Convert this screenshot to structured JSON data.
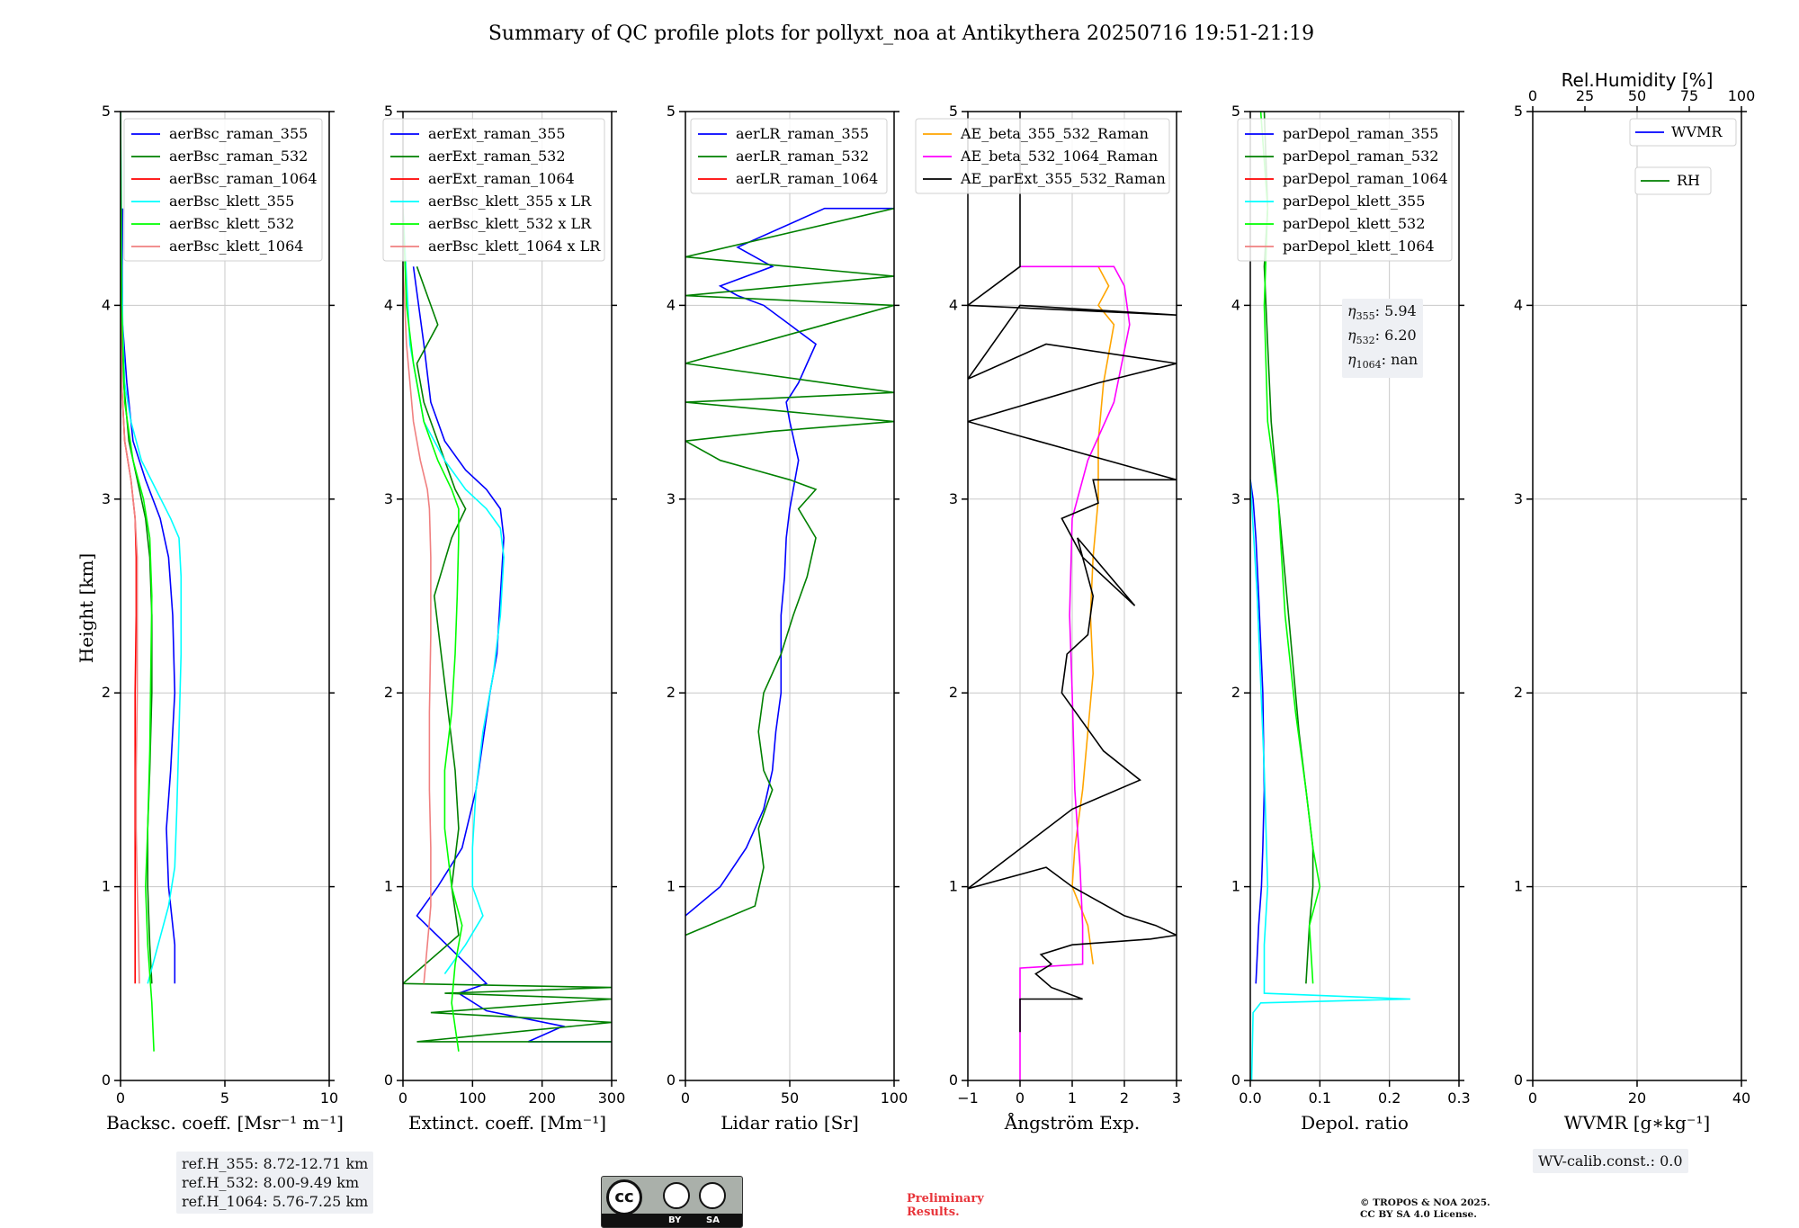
{
  "title": "Summary of QC profile plots for pollyxt_noa at Antikythera 20250716 19:51-21:19",
  "ylabel": "Height [km]",
  "ref_box": [
    "ref.H_355: 8.72-12.71 km",
    "ref.H_532: 8.00-9.49 km",
    "ref.H_1064: 5.76-7.25 km"
  ],
  "eta_box": [
    {
      "sub": "355",
      "value": "5.94"
    },
    {
      "sub": "532",
      "value": "6.20"
    },
    {
      "sub": "1064",
      "value": "nan"
    }
  ],
  "wv_calib": "WV-calib.const.: 0.0",
  "preliminary": "Preliminary\nResults.",
  "copyright": "© TROPOS & NOA 2025.\nCC BY SA 4.0 License.",
  "license_badge": {
    "by": "BY",
    "sa": "SA",
    "cc": "cc"
  },
  "chart_data": [
    {
      "type": "line",
      "xlabel": "Backsc. coeff. [Msr⁻¹ m⁻¹]",
      "xlim": [
        0,
        10
      ],
      "ylim": [
        0,
        5
      ],
      "xticks": [
        "0",
        "5",
        "10"
      ],
      "yticks": [
        "0",
        "1",
        "2",
        "3",
        "4",
        "5"
      ],
      "legend": "top-right",
      "grid": true,
      "series": [
        {
          "name": "aerBsc_raman_355",
          "color": "#0000ff",
          "x": [
            2.6,
            2.6,
            2.3,
            2.2,
            2.4,
            2.6,
            2.5,
            2.3,
            1.9,
            1.2,
            0.6,
            0.3,
            0.1,
            0.08,
            0.1
          ],
          "y": [
            0.5,
            0.7,
            1.0,
            1.3,
            1.6,
            2.0,
            2.4,
            2.7,
            2.9,
            3.1,
            3.3,
            3.6,
            3.9,
            4.2,
            4.5
          ]
        },
        {
          "name": "aerBsc_raman_532",
          "color": "#008000",
          "x": [
            1.5,
            1.4,
            1.3,
            1.3,
            1.4,
            1.5,
            1.5,
            1.4,
            1.2,
            0.8,
            0.4,
            0.15,
            0.05,
            0.05
          ],
          "y": [
            0.5,
            0.7,
            1.0,
            1.3,
            1.6,
            2.0,
            2.4,
            2.7,
            2.9,
            3.1,
            3.3,
            3.6,
            4.0,
            4.5
          ]
        },
        {
          "name": "aerBsc_raman_1064",
          "color": "#ff0000",
          "x": [
            0.7,
            0.7,
            0.7,
            0.7,
            0.7,
            0.7,
            0.75,
            0.75,
            0.7,
            0.5,
            0.2,
            0.05,
            0.02
          ],
          "y": [
            0.5,
            0.7,
            1.0,
            1.3,
            1.6,
            2.0,
            2.4,
            2.7,
            2.9,
            3.1,
            3.3,
            3.6,
            4.0
          ]
        },
        {
          "name": "aerBsc_klett_355",
          "color": "#00ffff",
          "x": [
            1.3,
            1.8,
            2.3,
            2.6,
            2.7,
            2.8,
            2.9,
            2.9,
            2.8,
            2.4,
            1.7,
            1.0,
            0.5,
            0.2,
            0.1,
            0.05,
            0.0
          ],
          "y": [
            0.5,
            0.7,
            0.9,
            1.1,
            1.4,
            1.8,
            2.2,
            2.6,
            2.8,
            2.9,
            3.05,
            3.2,
            3.4,
            3.6,
            3.9,
            4.3,
            5.0
          ]
        },
        {
          "name": "aerBsc_klett_532",
          "color": "#00ff00",
          "x": [
            1.6,
            1.5,
            1.3,
            1.2,
            1.3,
            1.4,
            1.45,
            1.5,
            1.4,
            1.1,
            0.6,
            0.2,
            0.05,
            0.0
          ],
          "y": [
            0.15,
            0.4,
            0.7,
            1.0,
            1.3,
            1.7,
            2.1,
            2.5,
            2.8,
            3.0,
            3.2,
            3.5,
            4.0,
            5.0
          ]
        },
        {
          "name": "aerBsc_klett_1064",
          "color": "#f08080",
          "x": [
            0.9,
            0.85,
            0.8,
            0.75,
            0.75,
            0.8,
            0.8,
            0.8,
            0.7,
            0.5,
            0.2,
            0.05,
            0.0
          ],
          "y": [
            0.5,
            0.8,
            1.0,
            1.3,
            1.6,
            2.0,
            2.4,
            2.7,
            2.9,
            3.1,
            3.3,
            3.6,
            4.0
          ]
        }
      ]
    },
    {
      "type": "line",
      "xlabel": "Extinct. coeff. [Mm⁻¹]",
      "xlim": [
        0,
        300
      ],
      "ylim": [
        0,
        5
      ],
      "xticks": [
        "0",
        "100",
        "200",
        "300"
      ],
      "yticks": [
        "0",
        "1",
        "2",
        "3",
        "4",
        "5"
      ],
      "legend": "top-right",
      "grid": true,
      "series": [
        {
          "name": "aerExt_raman_355",
          "color": "#0000ff",
          "x": [
            300,
            180,
            230,
            120,
            80,
            120,
            20,
            50,
            85,
            105,
            115,
            125,
            135,
            140,
            145,
            140,
            120,
            90,
            60,
            40,
            30,
            15
          ],
          "y": [
            0.2,
            0.2,
            0.28,
            0.36,
            0.45,
            0.5,
            0.85,
            1.0,
            1.2,
            1.5,
            1.75,
            2.0,
            2.2,
            2.5,
            2.8,
            2.95,
            3.05,
            3.15,
            3.3,
            3.5,
            3.8,
            4.2
          ]
        },
        {
          "name": "aerExt_raman_532",
          "color": "#008000",
          "x": [
            300,
            20,
            300,
            40,
            300,
            60,
            300,
            0,
            80,
            70,
            80,
            75,
            65,
            55,
            45,
            70,
            90,
            75,
            60,
            40,
            30,
            20,
            50,
            20
          ],
          "y": [
            0.2,
            0.2,
            0.3,
            0.35,
            0.42,
            0.45,
            0.48,
            0.5,
            0.75,
            1.0,
            1.3,
            1.6,
            1.9,
            2.2,
            2.5,
            2.8,
            2.95,
            3.05,
            3.2,
            3.4,
            3.5,
            3.7,
            3.9,
            4.2
          ]
        },
        {
          "name": "aerExt_raman_1064",
          "color": "#ff0000",
          "x": [],
          "y": []
        },
        {
          "name": "aerBsc_klett_355 x LR",
          "color": "#00ffff",
          "x": [
            60,
            90,
            115,
            100,
            100,
            105,
            115,
            130,
            140,
            145,
            140,
            120,
            90,
            60,
            30,
            10,
            0
          ],
          "y": [
            0.55,
            0.7,
            0.85,
            1.0,
            1.2,
            1.5,
            1.8,
            2.1,
            2.4,
            2.7,
            2.85,
            2.95,
            3.05,
            3.2,
            3.4,
            3.8,
            4.5
          ]
        },
        {
          "name": "aerBsc_klett_532 x LR",
          "color": "#00ff00",
          "x": [
            80,
            70,
            75,
            85,
            70,
            60,
            60,
            70,
            75,
            78,
            80,
            80,
            70,
            50,
            30,
            15,
            5,
            0
          ],
          "y": [
            0.15,
            0.4,
            0.6,
            0.8,
            1.0,
            1.3,
            1.6,
            1.9,
            2.2,
            2.5,
            2.8,
            2.95,
            3.05,
            3.2,
            3.4,
            3.7,
            4.0,
            4.5
          ]
        },
        {
          "name": "aerBsc_klett_1064 x LR",
          "color": "#f08080",
          "x": [
            30,
            35,
            40,
            40,
            38,
            38,
            40,
            40,
            38,
            35,
            25,
            15,
            5,
            0
          ],
          "y": [
            0.5,
            0.7,
            0.9,
            1.2,
            1.5,
            1.9,
            2.3,
            2.7,
            2.95,
            3.05,
            3.2,
            3.4,
            3.8,
            4.2
          ]
        }
      ]
    },
    {
      "type": "line",
      "xlabel": "Lidar ratio [Sr]",
      "xlim": [
        0,
        120
      ],
      "ylim": [
        0,
        5
      ],
      "xticks": [
        "0",
        "50",
        "100"
      ],
      "yticks": [
        "0",
        "1",
        "2",
        "3",
        "4",
        "5"
      ],
      "legend": "top-right",
      "grid": true,
      "series": [
        {
          "name": "aerLR_raman_355",
          "color": "#0000ff",
          "x": [
            0,
            20,
            35,
            45,
            50,
            52,
            55,
            55,
            55,
            57,
            58,
            60,
            62,
            65,
            60,
            58,
            65,
            70,
            75,
            60,
            45,
            30,
            20,
            50,
            30,
            80,
            120
          ],
          "y": [
            0.85,
            1.0,
            1.2,
            1.4,
            1.6,
            1.8,
            2.0,
            2.2,
            2.4,
            2.6,
            2.8,
            2.95,
            3.05,
            3.2,
            3.4,
            3.5,
            3.6,
            3.7,
            3.8,
            3.9,
            4.0,
            4.05,
            4.1,
            4.2,
            4.3,
            4.5,
            4.5
          ]
        },
        {
          "name": "aerLR_raman_532",
          "color": "#008000",
          "x": [
            0,
            40,
            45,
            42,
            50,
            45,
            42,
            45,
            55,
            62,
            70,
            75,
            65,
            75,
            60,
            40,
            20,
            0,
            50,
            120,
            0,
            120,
            0,
            120,
            0,
            120,
            0,
            120
          ],
          "y": [
            0.75,
            0.9,
            1.1,
            1.3,
            1.5,
            1.6,
            1.8,
            2.0,
            2.2,
            2.4,
            2.6,
            2.8,
            2.95,
            3.05,
            3.1,
            3.15,
            3.2,
            3.3,
            3.35,
            3.4,
            3.5,
            3.55,
            3.7,
            4.0,
            4.05,
            4.15,
            4.25,
            4.5
          ]
        },
        {
          "name": "aerLR_raman_1064",
          "color": "#ff0000",
          "x": [],
          "y": []
        }
      ]
    },
    {
      "type": "line",
      "xlabel": "Ångström Exp.",
      "xlim": [
        -1,
        3
      ],
      "ylim": [
        0,
        5
      ],
      "xticks": [
        "−1",
        "0",
        "1",
        "2",
        "3"
      ],
      "yticks": [
        "0",
        "1",
        "2",
        "3",
        "4",
        "5"
      ],
      "legend": "top-right",
      "grid": true,
      "series": [
        {
          "name": "AE_beta_355_532_Raman",
          "color": "#ffa500",
          "x": [
            1.4,
            1.3,
            1.0,
            1.05,
            1.2,
            1.3,
            1.4,
            1.35,
            1.4,
            1.5,
            1.5,
            1.6,
            1.8,
            1.5,
            1.7,
            1.5
          ],
          "y": [
            0.6,
            0.8,
            1.0,
            1.2,
            1.5,
            1.8,
            2.1,
            2.4,
            2.7,
            3.0,
            3.3,
            3.6,
            3.9,
            4.0,
            4.1,
            4.2
          ]
        },
        {
          "name": "AE_beta_532_1064_Raman",
          "color": "#ff00ff",
          "x": [
            0,
            0,
            1.2,
            1.2,
            1.15,
            1.05,
            1.0,
            0.95,
            1.0,
            1.3,
            1.8,
            2.1,
            2.0,
            1.8,
            0
          ],
          "y": [
            0,
            0.58,
            0.6,
            0.8,
            1.1,
            1.5,
            2.0,
            2.4,
            2.9,
            3.2,
            3.5,
            3.9,
            4.1,
            4.2,
            4.2
          ]
        },
        {
          "name": "AE_parExt_355_532_Raman",
          "color": "#000000",
          "x": [
            0,
            0,
            1.2,
            0.6,
            0.3,
            0.6,
            0.4,
            1.0,
            2.5,
            3.0,
            2.6,
            2.0,
            1.0,
            0.5,
            -1,
            1.0,
            2.3,
            1.6,
            0.8,
            0.9,
            1.3,
            1.4,
            1.1,
            2.2,
            1.2,
            0.8,
            1.5,
            1.4,
            1.5,
            3.0,
            1.0,
            -1,
            1.5,
            3.0,
            0.5,
            -1,
            0,
            3.0,
            -1,
            0,
            0
          ],
          "y": [
            0.25,
            0.42,
            0.42,
            0.48,
            0.55,
            0.6,
            0.65,
            0.7,
            0.73,
            0.75,
            0.8,
            0.85,
            1.0,
            1.1,
            0.99,
            1.4,
            1.55,
            1.7,
            2.0,
            2.2,
            2.3,
            2.5,
            2.8,
            2.45,
            2.7,
            2.9,
            2.98,
            3.1,
            3.1,
            3.1,
            3.25,
            3.4,
            3.6,
            3.7,
            3.8,
            3.62,
            4.0,
            3.95,
            4.0,
            4.2,
            5.0
          ]
        }
      ]
    },
    {
      "type": "line",
      "xlabel": "Depol. ratio",
      "xlim": [
        0,
        0.3
      ],
      "ylim": [
        0,
        5
      ],
      "xticks": [
        "0.0",
        "0.1",
        "0.2",
        "0.3"
      ],
      "yticks": [
        "0",
        "1",
        "2",
        "3",
        "4",
        "5"
      ],
      "legend": "top-right",
      "grid": true,
      "series": [
        {
          "name": "parDepol_raman_355",
          "color": "#0000ff",
          "x": [
            0.008,
            0.012,
            0.016,
            0.018,
            0.02,
            0.018,
            0.012,
            0.008,
            0.004,
            0.0
          ],
          "y": [
            0.5,
            0.8,
            1.0,
            1.2,
            1.5,
            2.0,
            2.5,
            2.8,
            3.0,
            3.1
          ]
        },
        {
          "name": "parDepol_raman_532",
          "color": "#008000",
          "x": [
            0.08,
            0.085,
            0.09,
            0.09,
            0.08,
            0.07,
            0.06,
            0.05,
            0.04,
            0.03,
            0.025,
            0.02,
            0.025,
            0.02
          ],
          "y": [
            0.5,
            0.8,
            1.0,
            1.2,
            1.5,
            1.8,
            2.2,
            2.6,
            3.0,
            3.4,
            3.8,
            4.2,
            4.5,
            5.0
          ]
        },
        {
          "name": "parDepol_raman_1064",
          "color": "#ff0000",
          "x": [],
          "y": []
        },
        {
          "name": "parDepol_klett_355",
          "color": "#00ffff",
          "x": [
            0.002,
            0.004,
            0.015,
            0.23,
            0.02,
            0.02,
            0.025,
            0.02,
            0.01,
            0.0
          ],
          "y": [
            0,
            0.35,
            0.4,
            0.42,
            0.45,
            0.7,
            1.0,
            1.6,
            2.5,
            3.1
          ]
        },
        {
          "name": "parDepol_klett_532",
          "color": "#00ff00",
          "x": [
            0.09,
            0.085,
            0.1,
            0.09,
            0.08,
            0.065,
            0.05,
            0.04,
            0.025,
            0.02,
            0.025,
            0.015
          ],
          "y": [
            0.5,
            0.8,
            1.0,
            1.2,
            1.5,
            1.9,
            2.4,
            3.0,
            3.4,
            4.0,
            4.5,
            5.0
          ]
        },
        {
          "name": "parDepol_klett_1064",
          "color": "#f08080",
          "x": [],
          "y": []
        }
      ]
    },
    {
      "type": "line",
      "xlabel": "WVMR [g∗kg⁻¹]",
      "xlim": [
        0,
        50
      ],
      "ylim": [
        0,
        5
      ],
      "xticks": [
        "0",
        "20",
        "40"
      ],
      "yticks": [
        "0",
        "1",
        "2",
        "3",
        "4",
        "5"
      ],
      "top_axis": {
        "label": "Rel.Humidity [%]",
        "ticks": [
          "0",
          "25",
          "50",
          "75",
          "100"
        ]
      },
      "legend": "top-right",
      "grid": true,
      "series": [
        {
          "name": "WVMR",
          "color": "#0000ff",
          "x": [],
          "y": []
        },
        {
          "name": "RH",
          "color": "#008000",
          "x": [],
          "y": []
        }
      ]
    }
  ]
}
